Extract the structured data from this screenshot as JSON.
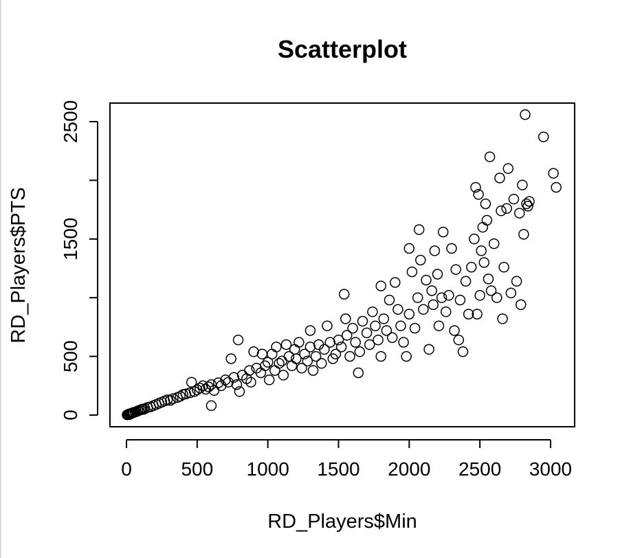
{
  "chart_data": {
    "type": "scatter",
    "title": "Scatterplot",
    "xlabel": "RD_Players$Min",
    "ylabel": "RD_Players$PTS",
    "xlim": [
      0,
      3050
    ],
    "ylim": [
      0,
      2560
    ],
    "xticks": [
      0,
      500,
      1000,
      1500,
      2000,
      2500,
      3000
    ],
    "xtick_labels": [
      "0",
      "500",
      "1000",
      "1500",
      "2000",
      "2500",
      "3000"
    ],
    "yticks": [
      0,
      500,
      1000,
      1500,
      2000,
      2500
    ],
    "ytick_labels": [
      "0",
      "",
      "500",
      "",
      "1500",
      "",
      "2500"
    ],
    "ytick_labels_at": {
      "0": "0",
      "500": "500",
      "1500": "1500",
      "2500": "2500"
    },
    "marker": "open-circle",
    "grid": false,
    "points": [
      [
        5,
        2
      ],
      [
        10,
        5
      ],
      [
        15,
        8
      ],
      [
        20,
        4
      ],
      [
        25,
        12
      ],
      [
        30,
        10
      ],
      [
        35,
        15
      ],
      [
        40,
        18
      ],
      [
        45,
        20
      ],
      [
        50,
        22
      ],
      [
        60,
        25
      ],
      [
        70,
        30
      ],
      [
        80,
        35
      ],
      [
        90,
        40
      ],
      [
        100,
        45
      ],
      [
        110,
        50
      ],
      [
        120,
        48
      ],
      [
        130,
        55
      ],
      [
        150,
        65
      ],
      [
        170,
        70
      ],
      [
        190,
        80
      ],
      [
        210,
        90
      ],
      [
        230,
        100
      ],
      [
        250,
        110
      ],
      [
        270,
        120
      ],
      [
        290,
        130
      ],
      [
        310,
        125
      ],
      [
        330,
        140
      ],
      [
        360,
        150
      ],
      [
        380,
        160
      ],
      [
        400,
        175
      ],
      [
        420,
        180
      ],
      [
        450,
        190
      ],
      [
        460,
        280
      ],
      [
        480,
        200
      ],
      [
        500,
        215
      ],
      [
        520,
        230
      ],
      [
        540,
        250
      ],
      [
        560,
        220
      ],
      [
        580,
        240
      ],
      [
        600,
        260
      ],
      [
        600,
        80
      ],
      [
        620,
        210
      ],
      [
        650,
        275
      ],
      [
        670,
        250
      ],
      [
        700,
        300
      ],
      [
        720,
        280
      ],
      [
        740,
        480
      ],
      [
        760,
        320
      ],
      [
        780,
        260
      ],
      [
        790,
        640
      ],
      [
        800,
        200
      ],
      [
        820,
        340
      ],
      [
        850,
        310
      ],
      [
        870,
        380
      ],
      [
        880,
        280
      ],
      [
        900,
        540
      ],
      [
        920,
        400
      ],
      [
        950,
        360
      ],
      [
        960,
        520
      ],
      [
        980,
        420
      ],
      [
        1000,
        450
      ],
      [
        1010,
        300
      ],
      [
        1030,
        520
      ],
      [
        1050,
        380
      ],
      [
        1060,
        580
      ],
      [
        1080,
        440
      ],
      [
        1100,
        460
      ],
      [
        1110,
        340
      ],
      [
        1130,
        600
      ],
      [
        1150,
        500
      ],
      [
        1170,
        420
      ],
      [
        1190,
        560
      ],
      [
        1200,
        480
      ],
      [
        1220,
        620
      ],
      [
        1240,
        400
      ],
      [
        1260,
        520
      ],
      [
        1280,
        460
      ],
      [
        1300,
        580
      ],
      [
        1300,
        720
      ],
      [
        1320,
        380
      ],
      [
        1340,
        500
      ],
      [
        1360,
        600
      ],
      [
        1380,
        440
      ],
      [
        1400,
        560
      ],
      [
        1420,
        760
      ],
      [
        1440,
        620
      ],
      [
        1460,
        480
      ],
      [
        1480,
        520
      ],
      [
        1500,
        640
      ],
      [
        1520,
        580
      ],
      [
        1540,
        1030
      ],
      [
        1550,
        820
      ],
      [
        1560,
        680
      ],
      [
        1580,
        500
      ],
      [
        1600,
        740
      ],
      [
        1620,
        620
      ],
      [
        1640,
        360
      ],
      [
        1650,
        540
      ],
      [
        1670,
        800
      ],
      [
        1700,
        700
      ],
      [
        1720,
        600
      ],
      [
        1740,
        880
      ],
      [
        1760,
        760
      ],
      [
        1780,
        640
      ],
      [
        1800,
        1100
      ],
      [
        1800,
        500
      ],
      [
        1820,
        820
      ],
      [
        1840,
        720
      ],
      [
        1860,
        980
      ],
      [
        1880,
        660
      ],
      [
        1900,
        1130
      ],
      [
        1920,
        900
      ],
      [
        1940,
        760
      ],
      [
        1960,
        620
      ],
      [
        1980,
        500
      ],
      [
        2000,
        1420
      ],
      [
        2000,
        860
      ],
      [
        2020,
        1220
      ],
      [
        2040,
        740
      ],
      [
        2060,
        1000
      ],
      [
        2070,
        1580
      ],
      [
        2080,
        1320
      ],
      [
        2100,
        900
      ],
      [
        2120,
        1150
      ],
      [
        2140,
        560
      ],
      [
        2160,
        1060
      ],
      [
        2170,
        940
      ],
      [
        2180,
        1400
      ],
      [
        2200,
        1200
      ],
      [
        2210,
        760
      ],
      [
        2230,
        1000
      ],
      [
        2240,
        1560
      ],
      [
        2260,
        880
      ],
      [
        2280,
        1020
      ],
      [
        2300,
        1420
      ],
      [
        2320,
        720
      ],
      [
        2330,
        1240
      ],
      [
        2350,
        640
      ],
      [
        2360,
        980
      ],
      [
        2380,
        540
      ],
      [
        2400,
        1140
      ],
      [
        2420,
        860
      ],
      [
        2440,
        1260
      ],
      [
        2460,
        1500
      ],
      [
        2470,
        1940
      ],
      [
        2480,
        860
      ],
      [
        2490,
        1880
      ],
      [
        2500,
        1020
      ],
      [
        2510,
        1400
      ],
      [
        2520,
        1600
      ],
      [
        2530,
        1300
      ],
      [
        2540,
        1800
      ],
      [
        2550,
        1660
      ],
      [
        2560,
        1160
      ],
      [
        2570,
        2200
      ],
      [
        2580,
        1060
      ],
      [
        2600,
        1460
      ],
      [
        2620,
        1000
      ],
      [
        2640,
        2020
      ],
      [
        2650,
        1740
      ],
      [
        2660,
        820
      ],
      [
        2670,
        1260
      ],
      [
        2690,
        1760
      ],
      [
        2700,
        2100
      ],
      [
        2720,
        1040
      ],
      [
        2740,
        1840
      ],
      [
        2760,
        1140
      ],
      [
        2780,
        1720
      ],
      [
        2790,
        940
      ],
      [
        2800,
        1960
      ],
      [
        2810,
        1540
      ],
      [
        2820,
        2560
      ],
      [
        2830,
        1800
      ],
      [
        2840,
        1780
      ],
      [
        2850,
        1820
      ],
      [
        2950,
        2370
      ],
      [
        3020,
        2060
      ],
      [
        3040,
        1940
      ]
    ]
  }
}
